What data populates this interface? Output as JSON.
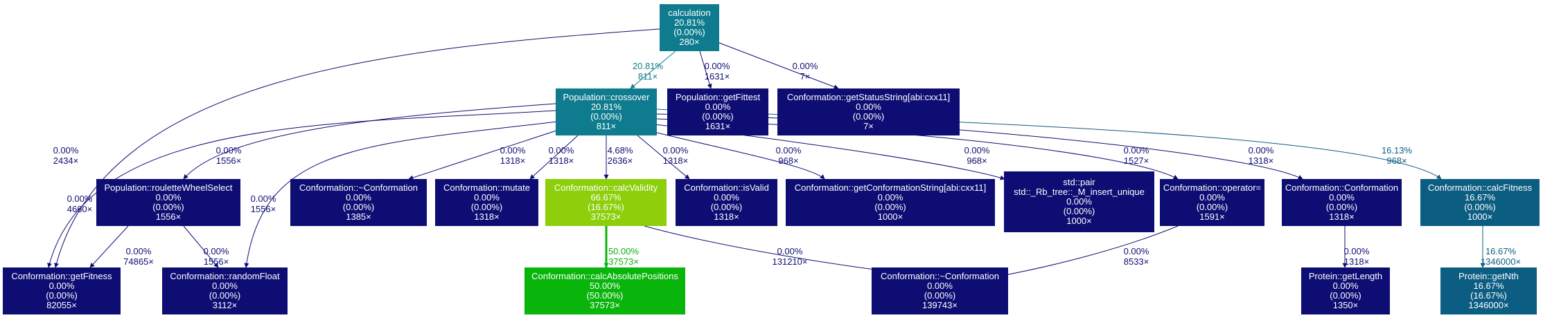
{
  "nodes": [
    {
      "id": "calculation",
      "lines": [
        "calculation",
        "20.81%",
        "(0.00%)",
        "280×"
      ],
      "color": "#0e7c8e"
    },
    {
      "id": "pop_crossover",
      "lines": [
        "Population::crossover",
        "20.81%",
        "(0.00%)",
        "811×"
      ],
      "color": "#0e7c8e"
    },
    {
      "id": "pop_getfittest",
      "lines": [
        "Population::getFittest",
        "0.00%",
        "(0.00%)",
        "1631×"
      ],
      "color": "#0d0d73"
    },
    {
      "id": "conf_getstatus",
      "lines": [
        "Conformation::getStatusString[abi:cxx11]",
        "0.00%",
        "(0.00%)",
        "7×"
      ],
      "color": "#0d0d73"
    },
    {
      "id": "pop_roulette",
      "lines": [
        "Population::rouletteWheelSelect",
        "0.00%",
        "(0.00%)",
        "1556×"
      ],
      "color": "#0d0d73"
    },
    {
      "id": "conf_dtor1",
      "lines": [
        "Conformation::~Conformation",
        "0.00%",
        "(0.00%)",
        "1385×"
      ],
      "color": "#0d0d73"
    },
    {
      "id": "conf_mutate",
      "lines": [
        "Conformation::mutate",
        "0.00%",
        "(0.00%)",
        "1318×"
      ],
      "color": "#0d0d73"
    },
    {
      "id": "conf_calcvalidity",
      "lines": [
        "Conformation::calcValidity",
        "66.67%",
        "(16.67%)",
        "37573×"
      ],
      "color": "#8ccf0a"
    },
    {
      "id": "conf_isvalid",
      "lines": [
        "Conformation::isValid",
        "0.00%",
        "(0.00%)",
        "1318×"
      ],
      "color": "#0d0d73"
    },
    {
      "id": "conf_getconfstring",
      "lines": [
        "Conformation::getConformationString[abi:cxx11]",
        "0.00%",
        "(0.00%)",
        "1000×"
      ],
      "color": "#0d0d73"
    },
    {
      "id": "std_pair",
      "lines": [
        "std::pair",
        "std::_Rb_tree::_M_insert_unique",
        "0.00%",
        "(0.00%)",
        "1000×"
      ],
      "color": "#0d0d73"
    },
    {
      "id": "conf_opassign",
      "lines": [
        "Conformation::operator=",
        "0.00%",
        "(0.00%)",
        "1591×"
      ],
      "color": "#0d0d73"
    },
    {
      "id": "conf_ctor",
      "lines": [
        "Conformation::Conformation",
        "0.00%",
        "(0.00%)",
        "1318×"
      ],
      "color": "#0d0d73"
    },
    {
      "id": "conf_calcfitness",
      "lines": [
        "Conformation::calcFitness",
        "16.67%",
        "(0.00%)",
        "1000×"
      ],
      "color": "#0c5d82"
    },
    {
      "id": "conf_getfitness",
      "lines": [
        "Conformation::getFitness",
        "0.00%",
        "(0.00%)",
        "82055×"
      ],
      "color": "#0d0d73"
    },
    {
      "id": "conf_randomfloat",
      "lines": [
        "Conformation::randomFloat",
        "0.00%",
        "(0.00%)",
        "3112×"
      ],
      "color": "#0d0d73"
    },
    {
      "id": "conf_calcabs",
      "lines": [
        "Conformation::calcAbsolutePositions",
        "50.00%",
        "(50.00%)",
        "37573×"
      ],
      "color": "#09b40b"
    },
    {
      "id": "conf_dtor2",
      "lines": [
        "Conformation::~Conformation",
        "0.00%",
        "(0.00%)",
        "139743×"
      ],
      "color": "#0d0d73"
    },
    {
      "id": "prot_getlength",
      "lines": [
        "Protein::getLength",
        "0.00%",
        "(0.00%)",
        "1350×"
      ],
      "color": "#0d0d73"
    },
    {
      "id": "prot_getnth",
      "lines": [
        "Protein::getNth",
        "16.67%",
        "(16.67%)",
        "1346000×"
      ],
      "color": "#0c5d82"
    }
  ],
  "edges": [
    {
      "from": "calculation",
      "to": "pop_crossover",
      "lines": [
        "20.81%",
        "811×"
      ],
      "color": "#0e7c8e"
    },
    {
      "from": "calculation",
      "to": "pop_getfittest",
      "lines": [
        "0.00%",
        "1631×"
      ],
      "color": "#0d0d73"
    },
    {
      "from": "calculation",
      "to": "conf_getstatus",
      "lines": [
        "0.00%",
        "7×"
      ],
      "color": "#0d0d73"
    },
    {
      "from": "calculation",
      "to": "conf_getfitness",
      "lines": [
        "0.00%",
        "2434×"
      ],
      "color": "#0d0d73"
    },
    {
      "from": "pop_crossover",
      "to": "pop_roulette",
      "lines": [
        "0.00%",
        "1556×"
      ],
      "color": "#0d0d73"
    },
    {
      "from": "pop_crossover",
      "to": "conf_getfitness",
      "lines": [
        "0.00%",
        "4660×"
      ],
      "color": "#0d0d73"
    },
    {
      "from": "pop_crossover",
      "to": "conf_randomfloat",
      "lines": [
        "0.00%",
        "1556×"
      ],
      "color": "#0d0d73"
    },
    {
      "from": "pop_crossover",
      "to": "conf_dtor1",
      "lines": [
        "0.00%",
        "1318×"
      ],
      "color": "#0d0d73"
    },
    {
      "from": "pop_crossover",
      "to": "conf_mutate",
      "lines": [
        "0.00%",
        "1318×"
      ],
      "color": "#0d0d73"
    },
    {
      "from": "pop_crossover",
      "to": "conf_calcvalidity",
      "lines": [
        "4.68%",
        "2636×"
      ],
      "color": "#0d0d73"
    },
    {
      "from": "pop_crossover",
      "to": "conf_isvalid",
      "lines": [
        "0.00%",
        "1318×"
      ],
      "color": "#0d0d73"
    },
    {
      "from": "pop_crossover",
      "to": "conf_getconfstring",
      "lines": [
        "0.00%",
        "968×"
      ],
      "color": "#0d0d73"
    },
    {
      "from": "pop_crossover",
      "to": "std_pair",
      "lines": [
        "0.00%",
        "968×"
      ],
      "color": "#0d0d73"
    },
    {
      "from": "pop_crossover",
      "to": "conf_opassign",
      "lines": [
        "0.00%",
        "1527×"
      ],
      "color": "#0d0d73"
    },
    {
      "from": "pop_crossover",
      "to": "conf_ctor",
      "lines": [
        "0.00%",
        "1318×"
      ],
      "color": "#0d0d73"
    },
    {
      "from": "pop_crossover",
      "to": "conf_calcfitness",
      "lines": [
        "16.13%",
        "968×"
      ],
      "color": "#0c5d82"
    },
    {
      "from": "pop_roulette",
      "to": "conf_getfitness",
      "lines": [
        "0.00%",
        "74865×"
      ],
      "color": "#0d0d73"
    },
    {
      "from": "pop_roulette",
      "to": "conf_randomfloat",
      "lines": [
        "0.00%",
        "1556×"
      ],
      "color": "#0d0d73"
    },
    {
      "from": "conf_calcvalidity",
      "to": "conf_calcabs",
      "lines": [
        "50.00%",
        "37573×"
      ],
      "color": "#09b40b"
    },
    {
      "from": "conf_calcvalidity",
      "to": "conf_dtor2",
      "lines": [
        "0.00%",
        "131210×"
      ],
      "color": "#0d0d73"
    },
    {
      "from": "conf_opassign",
      "to": "conf_dtor2",
      "lines": [
        "0.00%",
        "8533×"
      ],
      "color": "#0d0d73"
    },
    {
      "from": "conf_ctor",
      "to": "prot_getlength",
      "lines": [
        "0.00%",
        "1318×"
      ],
      "color": "#0d0d73"
    },
    {
      "from": "conf_calcfitness",
      "to": "prot_getnth",
      "lines": [
        "16.67%",
        "1346000×"
      ],
      "color": "#0c5d82"
    }
  ]
}
